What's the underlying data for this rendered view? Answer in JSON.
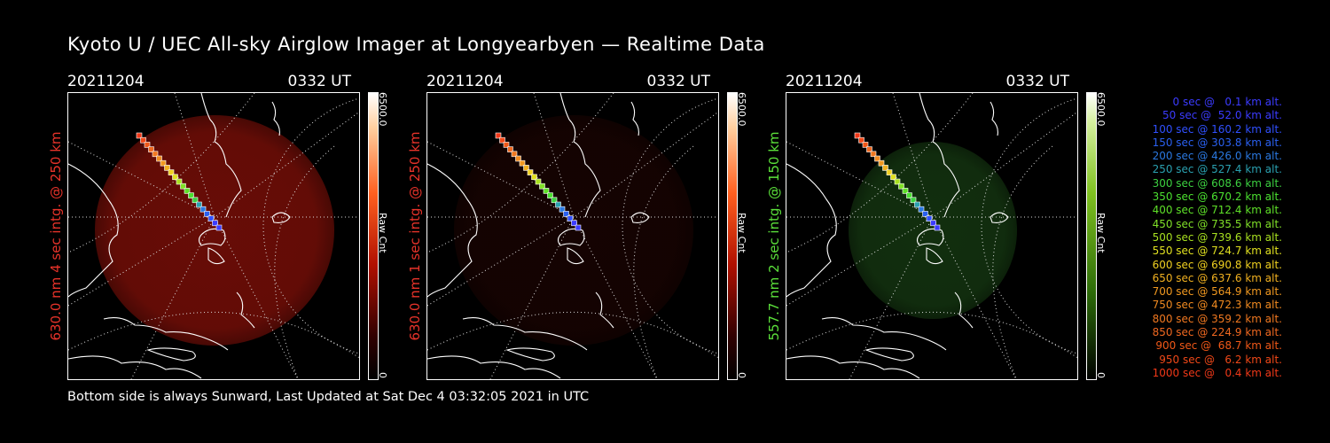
{
  "title": "Kyoto U / UEC All-sky Airglow Imager at Longyearbyen — Realtime Data",
  "footer": "Bottom side is always Sunward, Last Updated at Sat Dec  4 03:32:05 2021 in UTC",
  "panels": [
    {
      "date": "20211204",
      "time": "0332 UT",
      "label": "630.0 nm 4 sec intg. @ 250 km",
      "label_color": "#e8332a",
      "colorbar": "red",
      "cb_max": "6500.0",
      "cb_unit": "Raw Cnt",
      "cb_min": "0",
      "glow": "#7a0f08",
      "glow_intensity": 0.85
    },
    {
      "date": "20211204",
      "time": "0332 UT",
      "label": "630.0 nm 1 sec intg. @ 250 km",
      "label_color": "#e8332a",
      "colorbar": "red",
      "cb_max": "6500.0",
      "cb_unit": "Raw Cnt",
      "cb_min": "0",
      "glow": "#2a0603",
      "glow_intensity": 0.5
    },
    {
      "date": "20211204",
      "time": "0332 UT",
      "label": "557.7 nm 2 sec intg. @ 150 km",
      "label_color": "#5be03a",
      "colorbar": "green",
      "cb_max": "6500.0",
      "cb_unit": "Raw Cnt",
      "cb_min": "0",
      "glow": "#163a12",
      "glow_intensity": 0.8
    }
  ],
  "legend": [
    {
      "text": "   0 sec @   0.1 km alt.",
      "color": "#3b3bff"
    },
    {
      "text": "  50 sec @  52.0 km alt.",
      "color": "#3b3bff"
    },
    {
      "text": " 100 sec @ 160.2 km alt.",
      "color": "#3050ff"
    },
    {
      "text": " 150 sec @ 303.8 km alt.",
      "color": "#2a60f0"
    },
    {
      "text": " 200 sec @ 426.0 km alt.",
      "color": "#2a78e0"
    },
    {
      "text": " 250 sec @ 527.4 km alt.",
      "color": "#2aa0b0"
    },
    {
      "text": " 300 sec @ 608.6 km alt.",
      "color": "#3cd040"
    },
    {
      "text": " 350 sec @ 670.2 km alt.",
      "color": "#4be030"
    },
    {
      "text": " 400 sec @ 712.4 km alt.",
      "color": "#5ee028"
    },
    {
      "text": " 450 sec @ 735.5 km alt.",
      "color": "#80e028"
    },
    {
      "text": " 500 sec @ 739.6 km alt.",
      "color": "#a8e020"
    },
    {
      "text": " 550 sec @ 724.7 km alt.",
      "color": "#e0e020"
    },
    {
      "text": " 600 sec @ 690.8 km alt.",
      "color": "#f0d020"
    },
    {
      "text": " 650 sec @ 637.6 km alt.",
      "color": "#f0b020"
    },
    {
      "text": " 700 sec @ 564.9 km alt.",
      "color": "#f09820"
    },
    {
      "text": " 750 sec @ 472.3 km alt.",
      "color": "#f08a20"
    },
    {
      "text": " 800 sec @ 359.2 km alt.",
      "color": "#f07820"
    },
    {
      "text": " 850 sec @ 224.9 km alt.",
      "color": "#f06820"
    },
    {
      "text": " 900 sec @  68.7 km alt.",
      "color": "#f05818"
    },
    {
      "text": " 950 sec @   6.2 km alt.",
      "color": "#f04818"
    },
    {
      "text": "1000 sec @   0.4 km alt.",
      "color": "#f03818"
    }
  ]
}
